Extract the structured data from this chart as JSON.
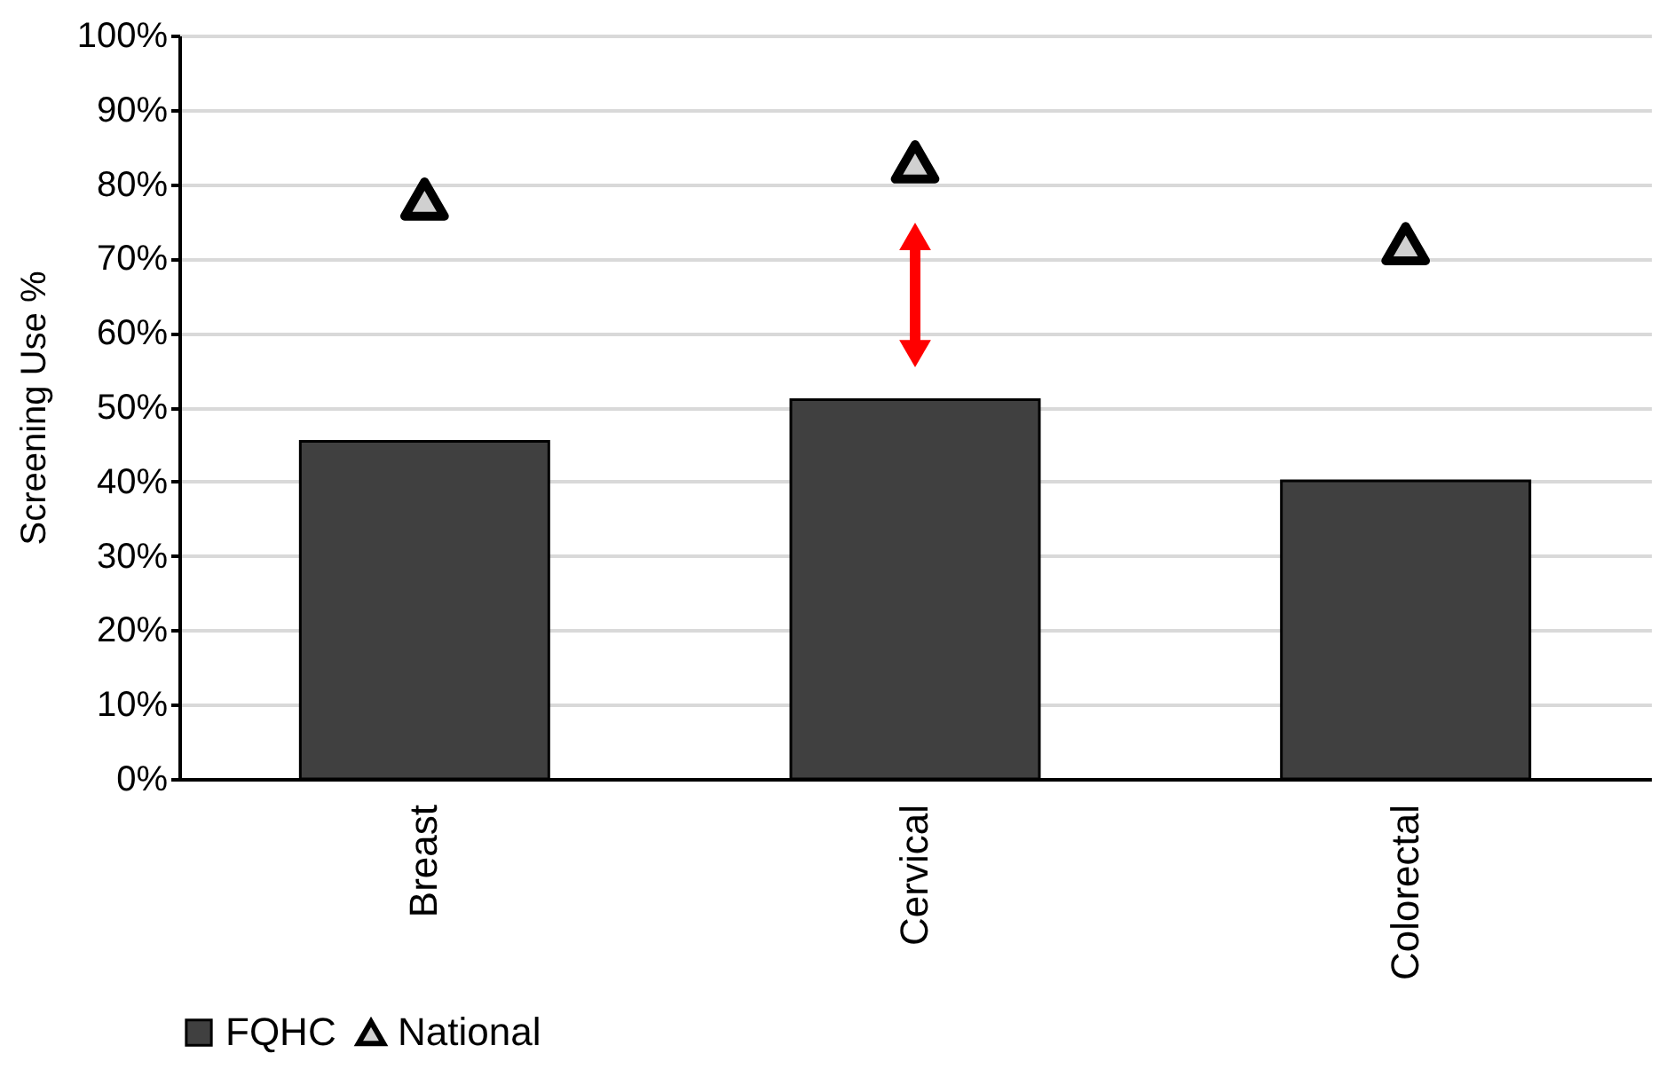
{
  "chart_data": {
    "type": "bar",
    "ylabel": "Screening Use %",
    "categories": [
      "Breast",
      "Cervical",
      "Colorectal"
    ],
    "series": [
      {
        "name": "FQHC",
        "color": "#404040",
        "values": [
          45.4,
          51.0,
          40.1
        ]
      },
      {
        "name": "National",
        "type": "scatter",
        "color": "#d0d0d0",
        "marker": "triangle",
        "values": [
          78,
          83,
          72
        ]
      }
    ],
    "ylim": [
      0,
      100
    ],
    "yticks": [
      {
        "value": 0,
        "label": "0%"
      },
      {
        "value": 10,
        "label": "10%"
      },
      {
        "value": 20,
        "label": "20%"
      },
      {
        "value": 30,
        "label": "30%"
      },
      {
        "value": 40,
        "label": "40%"
      },
      {
        "value": 50,
        "label": "50%"
      },
      {
        "value": 60,
        "label": "60%"
      },
      {
        "value": 70,
        "label": "70%"
      },
      {
        "value": 80,
        "label": "80%"
      },
      {
        "value": 90,
        "label": "90%"
      },
      {
        "value": 100,
        "label": "100%"
      }
    ],
    "grid": "y",
    "legend": "bottom"
  }
}
